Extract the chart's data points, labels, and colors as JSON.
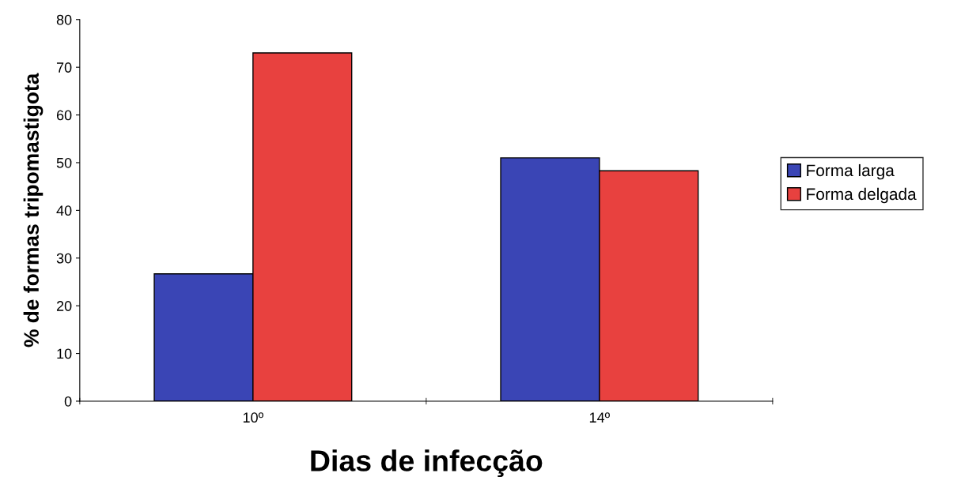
{
  "chart_data": {
    "type": "bar",
    "xlabel": "Dias de infecção",
    "ylabel": "% de formas tripomastigota",
    "categories": [
      "10º",
      "14º"
    ],
    "series": [
      {
        "name": "Forma larga",
        "color": "#3a45b5",
        "values": [
          26.7,
          51.0
        ]
      },
      {
        "name": "Forma delgada",
        "color": "#e8413f",
        "values": [
          73.0,
          48.3
        ]
      }
    ],
    "ylim": [
      0,
      80
    ],
    "yticks": [
      0,
      10,
      20,
      30,
      40,
      50,
      60,
      70,
      80
    ],
    "grid": false,
    "legend": "right"
  }
}
